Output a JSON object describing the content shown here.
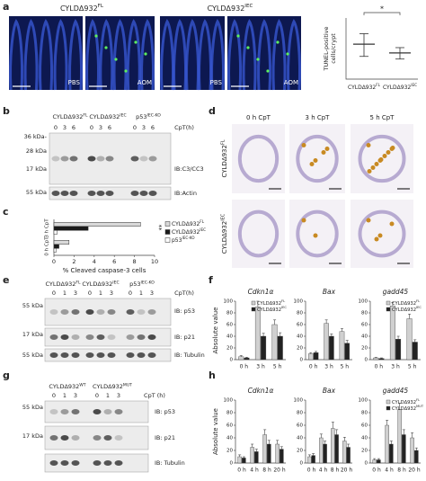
{
  "panel_labels": [
    "a",
    "b",
    "c",
    "d",
    "e",
    "f",
    "g",
    "h"
  ],
  "a_images": {
    "groups": [
      {
        "text": "CYLDΔ932",
        "sup": "FL"
      },
      {
        "text": "CYLDΔ932",
        "sup": "IEC"
      }
    ],
    "labels": [
      "PBS",
      "AOM",
      "PBS",
      "AOM"
    ]
  },
  "b_blot": {
    "groups": [
      {
        "text": "CYLDΔ932",
        "sup": "FL"
      },
      {
        "text": "CYLDΔ932",
        "sup": "IEC"
      },
      {
        "text": "p53",
        "sup": "IEC-KO"
      }
    ],
    "time_label": "CpT(h)",
    "lanes": [
      0,
      3,
      6,
      0,
      3,
      6,
      0,
      3,
      6
    ],
    "kda": [
      "36 kDa-",
      "28 kDa",
      "17 kDa",
      "55 kDa"
    ],
    "ib": [
      "IB:C3/CC3",
      "IB:Actin"
    ]
  },
  "d_images": {
    "columns": [
      "0 h CpT",
      "3 h CpT",
      "5 h CpT"
    ],
    "rows": [
      {
        "text": "CYLDΔ932",
        "sup": "FL"
      },
      {
        "text": "CYLDΔ932",
        "sup": "IEC"
      }
    ]
  },
  "e_blot": {
    "groups": [
      {
        "text": "CYLDΔ932",
        "sup": "FL"
      },
      {
        "text": "CYLDΔ932",
        "sup": "IEC"
      },
      {
        "text": "p53",
        "sup": "IEC-KO"
      }
    ],
    "time_label": "CpT(h)",
    "lanes": [
      0,
      1,
      3,
      0,
      1,
      3,
      0,
      1,
      3
    ],
    "kda": [
      "55 kDa",
      "17 kDa",
      "55 kDa"
    ],
    "ib": [
      "IB: p53",
      "IB: p21",
      "IB: Tubulin"
    ]
  },
  "g_blot": {
    "groups": [
      {
        "text": "CYLDΔ932",
        "sup": "WT"
      },
      {
        "text": "CYLDΔ932",
        "sup": "MUT"
      }
    ],
    "time_label": "CpT (h)",
    "lanes": [
      0,
      1,
      3,
      0,
      1,
      3
    ],
    "kda": [
      "55 kDa",
      "17 kDa"
    ],
    "ib": [
      "IB: p53",
      "IB: p21",
      "IB: Tubulin"
    ]
  },
  "chart_data": [
    {
      "type": "range",
      "ylabel": [
        "TUNEL-positive",
        "cells/crypt"
      ],
      "categories": [
        {
          "text": "CYLDΔ932",
          "sup": "FL"
        },
        {
          "text": "CYLDΔ932",
          "sup": "IEC"
        }
      ],
      "values": [
        3.43,
        2.57
      ],
      "low": [
        2.23,
        1.97
      ],
      "high": [
        4.46,
        3.09
      ],
      "ylim": [
        0,
        6
      ],
      "annotation": "*",
      "color": "#333333"
    },
    {
      "type": "hbar",
      "xlabel": "% Cleaved caspase-3 cells",
      "categories": [
        "3 h CpT",
        "0 h CpT"
      ],
      "series": [
        {
          "name": {
            "text": "CYLDΔ932",
            "sup": "FL"
          },
          "color": "#d9d9d9",
          "values": [
            8.6,
            1.5
          ]
        },
        {
          "name": {
            "text": "CYLDΔ932",
            "sup": "IEC"
          },
          "color": "#1a1a1a",
          "values": [
            3.4,
            0.5
          ]
        },
        {
          "name": {
            "text": "p53",
            "sup": "IEC-KO"
          },
          "color": "#ffffff",
          "values": [
            0.3,
            0.2
          ]
        }
      ],
      "xlim": [
        0,
        10
      ],
      "xticks": [
        0,
        2,
        4,
        6,
        8,
        10
      ],
      "annotation": "**"
    },
    {
      "type": "bar",
      "title": "Cdkn1α",
      "ylabel": "Absolute value",
      "categories": [
        "0 h",
        "3 h",
        "5 h"
      ],
      "series": [
        {
          "name": {
            "text": "CYLDΔ932",
            "sup": "FL"
          },
          "color": "#d0d0d0",
          "values": [
            5,
            90,
            60
          ],
          "errors": [
            2,
            10,
            8
          ]
        },
        {
          "name": {
            "text": "CYLDΔ932",
            "sup": "IEC"
          },
          "color": "#222222",
          "values": [
            3,
            40,
            40
          ],
          "errors": [
            1,
            5,
            6
          ]
        }
      ],
      "ylim": [
        0,
        100
      ],
      "yticks": [
        0,
        20,
        40,
        60,
        80,
        100
      ],
      "legend": true
    },
    {
      "type": "bar",
      "title": "Bax",
      "categories": [
        "0 h",
        "3 h",
        "5 h"
      ],
      "series": [
        {
          "name": {
            "text": "CYLDΔ932",
            "sup": "FL"
          },
          "color": "#d0d0d0",
          "values": [
            10,
            62,
            48
          ],
          "errors": [
            2,
            6,
            5
          ]
        },
        {
          "name": {
            "text": "CYLDΔ932",
            "sup": "IEC"
          },
          "color": "#222222",
          "values": [
            12,
            40,
            28
          ],
          "errors": [
            2,
            4,
            5
          ]
        }
      ],
      "ylim": [
        0,
        100
      ],
      "yticks": [
        0,
        20,
        40,
        60,
        80,
        100
      ],
      "legend": false
    },
    {
      "type": "bar",
      "title": "gadd45",
      "categories": [
        "0 h",
        "3 h",
        "5 h"
      ],
      "series": [
        {
          "name": {
            "text": "CYLDΔ932",
            "sup": "FL"
          },
          "color": "#d0d0d0",
          "values": [
            3,
            92,
            70
          ],
          "errors": [
            1,
            6,
            8
          ]
        },
        {
          "name": {
            "text": "CYLDΔ932",
            "sup": "IEC"
          },
          "color": "#222222",
          "values": [
            2,
            35,
            30
          ],
          "errors": [
            1,
            5,
            4
          ]
        }
      ],
      "ylim": [
        0,
        100
      ],
      "yticks": [
        0,
        20,
        40,
        60,
        80,
        100
      ],
      "legend": true
    },
    {
      "type": "bar",
      "title": "Cdkn1α",
      "ylabel": "Absolute value",
      "categories": [
        "0 h",
        "4 h",
        "8 h",
        "20 h"
      ],
      "series": [
        {
          "name": {
            "text": "CYLDΔ932",
            "sup": "FL"
          },
          "color": "#d0d0d0",
          "values": [
            10,
            25,
            45,
            30
          ],
          "errors": [
            3,
            5,
            8,
            6
          ]
        },
        {
          "name": {
            "text": "CYLDΔ932",
            "sup": "MUT"
          },
          "color": "#222222",
          "values": [
            8,
            18,
            30,
            22
          ],
          "errors": [
            2,
            4,
            6,
            4
          ]
        }
      ],
      "ylim": [
        0,
        100
      ],
      "yticks": [
        0,
        20,
        40,
        60,
        80,
        100
      ],
      "legend": false
    },
    {
      "type": "bar",
      "title": "Bax",
      "categories": [
        "0 h",
        "4 h",
        "8 h",
        "20 h"
      ],
      "series": [
        {
          "name": {
            "text": "CYLDΔ932",
            "sup": "FL"
          },
          "color": "#d0d0d0",
          "values": [
            10,
            40,
            55,
            35
          ],
          "errors": [
            3,
            6,
            10,
            6
          ]
        },
        {
          "name": {
            "text": "CYLDΔ932",
            "sup": "MUT"
          },
          "color": "#222222",
          "values": [
            12,
            30,
            45,
            25
          ],
          "errors": [
            3,
            5,
            8,
            5
          ]
        }
      ],
      "ylim": [
        0,
        100
      ],
      "yticks": [
        0,
        20,
        40,
        60,
        80,
        100
      ],
      "legend": false
    },
    {
      "type": "bar",
      "title": "gadd45",
      "categories": [
        "0 h",
        "4 h",
        "8 h",
        "20 h"
      ],
      "series": [
        {
          "name": {
            "text": "CYLDΔ932",
            "sup": "FL"
          },
          "color": "#d0d0d0",
          "values": [
            5,
            60,
            85,
            40
          ],
          "errors": [
            2,
            8,
            10,
            8
          ]
        },
        {
          "name": {
            "text": "CYLDΔ932",
            "sup": "MUT"
          },
          "color": "#222222",
          "values": [
            5,
            30,
            45,
            20
          ],
          "errors": [
            2,
            5,
            8,
            4
          ]
        }
      ],
      "ylim": [
        0,
        100
      ],
      "yticks": [
        0,
        20,
        40,
        60,
        80,
        100
      ],
      "legend": true
    }
  ]
}
